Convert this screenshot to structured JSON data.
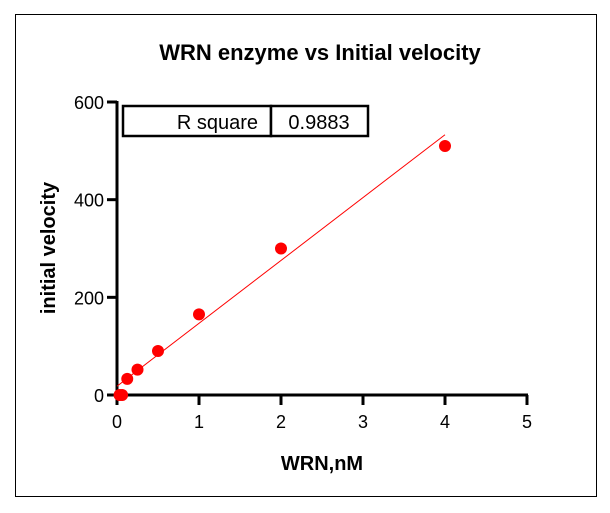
{
  "chart_data": {
    "type": "scatter",
    "title": "WRN enzyme vs Initial velocity",
    "xlabel": "WRN,nM",
    "ylabel": "initial velocity",
    "xlim": [
      0,
      5
    ],
    "ylim": [
      0,
      600
    ],
    "xticks": [
      "0",
      "1",
      "2",
      "3",
      "4",
      "5"
    ],
    "yticks": [
      "0",
      "200",
      "400",
      "600"
    ],
    "points": {
      "x": [
        0.03125,
        0.0625,
        0.125,
        0.25,
        0.5,
        1,
        2,
        4
      ],
      "y": [
        0,
        0,
        33,
        52,
        90,
        165,
        300,
        510
      ]
    },
    "fit_line": {
      "x": [
        0,
        4
      ],
      "y": [
        18,
        533
      ]
    },
    "annotation": {
      "label": "R square",
      "value": "0.9883"
    },
    "colors": {
      "points": "#ff0000",
      "line": "#ff0000"
    },
    "grid": false
  }
}
